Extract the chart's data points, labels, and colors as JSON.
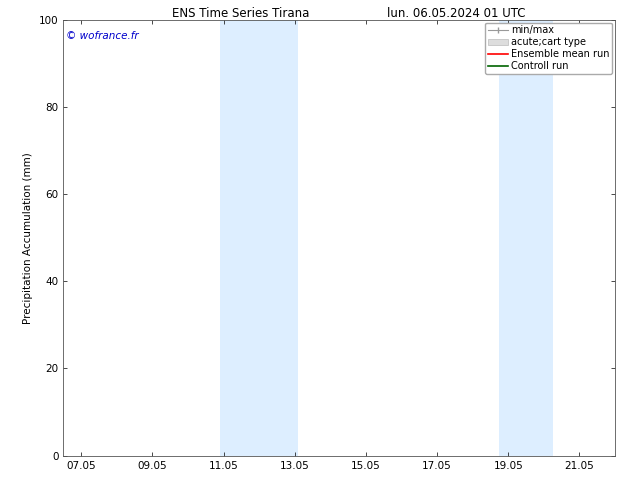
{
  "title_left": "ENS Time Series Tirana",
  "title_right": "lun. 06.05.2024 01 UTC",
  "ylabel": "Precipitation Accumulation (mm)",
  "watermark": "© wofrance.fr",
  "watermark_color": "#0000cc",
  "ylim": [
    0,
    100
  ],
  "xlim_start": 6.5,
  "xlim_end": 22.0,
  "xtick_labels": [
    "07.05",
    "09.05",
    "11.05",
    "13.05",
    "15.05",
    "17.05",
    "19.05",
    "21.05"
  ],
  "xtick_positions": [
    7.0,
    9.0,
    11.0,
    13.0,
    15.0,
    17.0,
    19.0,
    21.0
  ],
  "ytick_labels": [
    "0",
    "20",
    "40",
    "60",
    "80",
    "100"
  ],
  "ytick_positions": [
    0,
    20,
    40,
    60,
    80,
    100
  ],
  "shaded_regions": [
    {
      "x_start": 10.9,
      "x_end": 13.1,
      "color": "#ddeeff"
    },
    {
      "x_start": 18.75,
      "x_end": 20.25,
      "color": "#ddeeff"
    }
  ],
  "bg_color": "#ffffff",
  "plot_bg_color": "#ffffff",
  "font_size": 7.5,
  "title_font_size": 8.5,
  "legend_font_size": 7.0
}
